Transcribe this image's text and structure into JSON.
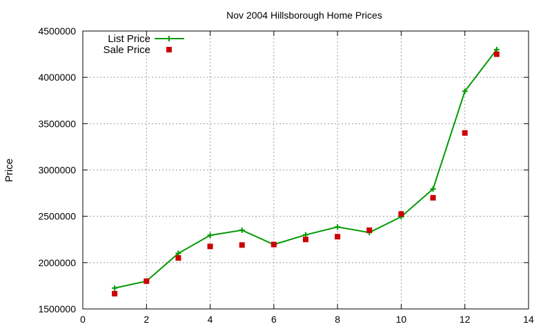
{
  "chart_data": {
    "type": "line",
    "title": "Nov 2004 Hillsborough Home Prices",
    "xlabel": "",
    "ylabel": "Price",
    "xlim": [
      0,
      14
    ],
    "ylim": [
      1500000,
      4500000
    ],
    "xticks": [
      0,
      2,
      4,
      6,
      8,
      10,
      12,
      14
    ],
    "yticks": [
      1500000,
      2000000,
      2500000,
      3000000,
      3500000,
      4000000,
      4500000
    ],
    "grid": true,
    "legend_position": "top-left",
    "series": [
      {
        "name": "List Price",
        "style": "line+plus",
        "color": "#009900",
        "x": [
          1,
          2,
          3,
          4,
          5,
          6,
          7,
          8,
          9,
          10,
          11,
          12,
          13
        ],
        "y": [
          1725000,
          1800000,
          2100000,
          2295000,
          2350000,
          2195000,
          2300000,
          2385000,
          2325000,
          2495000,
          2795000,
          3850000,
          4300000
        ]
      },
      {
        "name": "Sale Price",
        "style": "square-points",
        "color": "#cc0000",
        "x": [
          1,
          2,
          3,
          4,
          5,
          6,
          7,
          8,
          9,
          10,
          11,
          12,
          13
        ],
        "y": [
          1665000,
          1800000,
          2050000,
          2175000,
          2190000,
          2195000,
          2250000,
          2280000,
          2350000,
          2525000,
          2700000,
          3400000,
          4250000
        ]
      }
    ]
  }
}
